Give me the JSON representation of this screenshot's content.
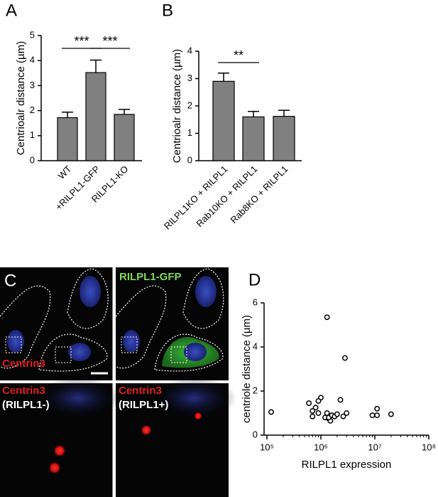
{
  "chart_data": [
    {
      "type": "bar",
      "panel": "A",
      "ylabel": "Centrioalr distance (µm)",
      "categories": [
        "WT",
        "+RILPL1-GFP",
        "RILPL1-KO"
      ],
      "values": [
        1.72,
        3.52,
        1.85
      ],
      "errors": [
        0.22,
        0.5,
        0.2
      ],
      "color": "#808080",
      "ylim": [
        0,
        5
      ],
      "yticks": [
        0,
        1,
        2,
        3,
        4,
        5
      ],
      "annotations": [
        "***",
        "***"
      ]
    },
    {
      "type": "bar",
      "panel": "B",
      "ylabel": "Centrioalr distance (µm)",
      "categories": [
        "RILPL1KO + RILPL1",
        "Rab10KO + RILPL1",
        "Rab8KO + RILPL1"
      ],
      "values": [
        2.9,
        1.6,
        1.62
      ],
      "errors": [
        0.3,
        0.2,
        0.22
      ],
      "color": "#808080",
      "ylim": [
        0,
        4
      ],
      "yticks": [
        0,
        1,
        2,
        3,
        4
      ],
      "annotations": [
        "**"
      ]
    },
    {
      "type": "scatter",
      "panel": "D",
      "xlabel": "RILPL1 expression",
      "ylabel": "centriole distance (µm)",
      "xlog": true,
      "x": [
        120000,
        600000,
        700000,
        700000,
        800000,
        900000,
        1000000,
        900000,
        1200000,
        1300000,
        1300000,
        1400000,
        1500000,
        1400000,
        1600000,
        1800000,
        2000000,
        2300000,
        2600000,
        2800000,
        3000000,
        9000000,
        11000000,
        11000000,
        20000000
      ],
      "y": [
        1.05,
        1.45,
        1.1,
        0.85,
        1.25,
        1.0,
        1.7,
        1.55,
        0.8,
        1.0,
        5.35,
        0.75,
        0.65,
        0.8,
        0.9,
        0.85,
        0.95,
        1.6,
        0.85,
        3.5,
        1.0,
        0.9,
        1.2,
        0.9,
        0.95
      ],
      "color": "#000000",
      "xlim": [
        100000,
        100000000
      ],
      "ylim": [
        0,
        6
      ],
      "xticks": [
        {
          "value": 100000,
          "label": "10⁵"
        },
        {
          "value": 1000000,
          "label": "10⁶"
        },
        {
          "value": 10000000,
          "label": "10⁷"
        },
        {
          "value": 100000000,
          "label": "10⁸"
        }
      ],
      "yticks": [
        0,
        2,
        4,
        6
      ]
    }
  ],
  "panel_c": {
    "label": "C",
    "top_right_title": "RILPL1-GFP",
    "top_left_stain": "Centrin3",
    "bottom_left": [
      "Centrin3",
      "(RILPL1-)"
    ],
    "bottom_right": [
      "Centrin3",
      "(RILPL1+)"
    ]
  }
}
